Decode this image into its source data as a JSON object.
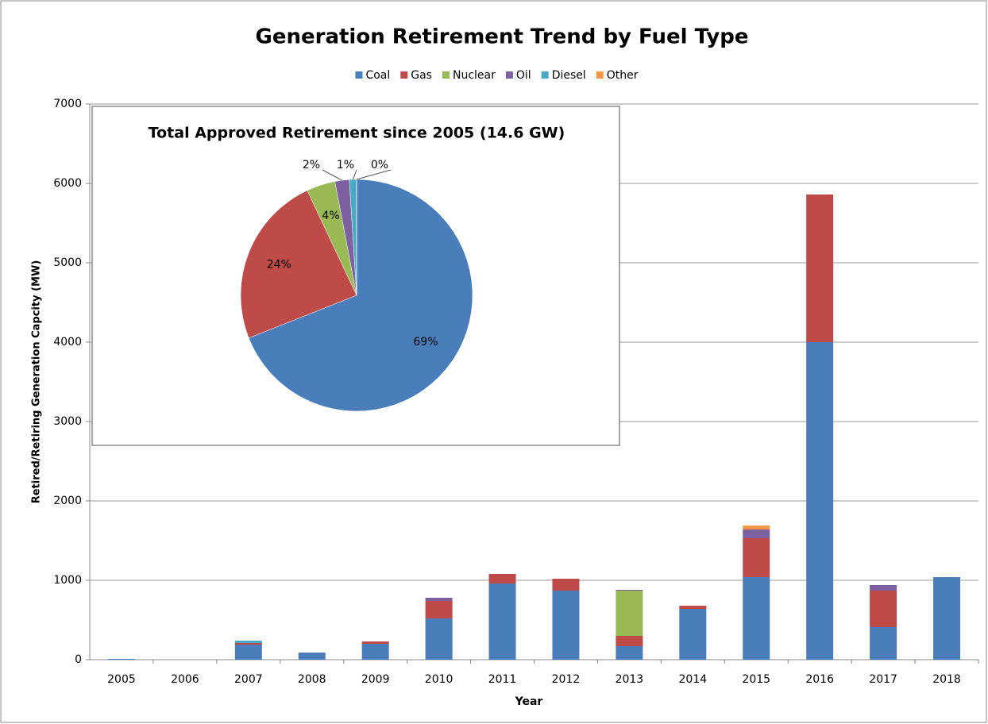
{
  "chart_data": [
    {
      "type": "bar",
      "stacked": true,
      "title": "Generation Retirement Trend by Fuel Type",
      "x_label": "Year",
      "y_label": "Retired/Retiring Generation Capcity (MW)",
      "categories": [
        "2005",
        "2006",
        "2007",
        "2008",
        "2009",
        "2010",
        "2011",
        "2012",
        "2013",
        "2014",
        "2015",
        "2016",
        "2017",
        "2018"
      ],
      "series": [
        {
          "name": "Coal",
          "color": "#4a7ebb",
          "values": [
            10,
            0,
            190,
            90,
            200,
            520,
            960,
            870,
            170,
            640,
            1040,
            4000,
            410,
            1040
          ]
        },
        {
          "name": "Gas",
          "color": "#be4b48",
          "values": [
            0,
            0,
            20,
            0,
            30,
            220,
            120,
            150,
            130,
            40,
            490,
            1860,
            460,
            0
          ]
        },
        {
          "name": "Nuclear",
          "color": "#98b954",
          "values": [
            0,
            0,
            0,
            0,
            0,
            0,
            0,
            0,
            570,
            0,
            0,
            0,
            0,
            0
          ]
        },
        {
          "name": "Oil",
          "color": "#7d60a0",
          "values": [
            0,
            0,
            0,
            0,
            0,
            40,
            0,
            0,
            10,
            0,
            110,
            0,
            70,
            0
          ]
        },
        {
          "name": "Diesel",
          "color": "#46aac5",
          "values": [
            0,
            0,
            30,
            0,
            0,
            0,
            0,
            0,
            0,
            0,
            0,
            0,
            0,
            0
          ]
        },
        {
          "name": "Other",
          "color": "#f79646",
          "values": [
            0,
            0,
            0,
            0,
            0,
            0,
            0,
            0,
            0,
            0,
            50,
            0,
            0,
            0
          ]
        }
      ],
      "ylim": [
        0,
        7000
      ],
      "yticks": [
        0,
        1000,
        2000,
        3000,
        4000,
        5000,
        6000,
        7000
      ],
      "grid": true,
      "legend": "top"
    },
    {
      "type": "pie",
      "title": "Total Approved Retirement since 2005 (14.6 GW)",
      "categories": [
        "Coal",
        "Gas",
        "Nuclear",
        "Oil",
        "Diesel",
        "Other"
      ],
      "values": [
        69,
        24,
        4,
        2,
        1,
        0
      ],
      "value_labels": [
        "69%",
        "24%",
        "4%",
        "2%",
        "1%",
        "0%"
      ],
      "colors": [
        "#4a7ebb",
        "#be4b48",
        "#98b954",
        "#7d60a0",
        "#46aac5",
        "#f79646"
      ]
    }
  ]
}
